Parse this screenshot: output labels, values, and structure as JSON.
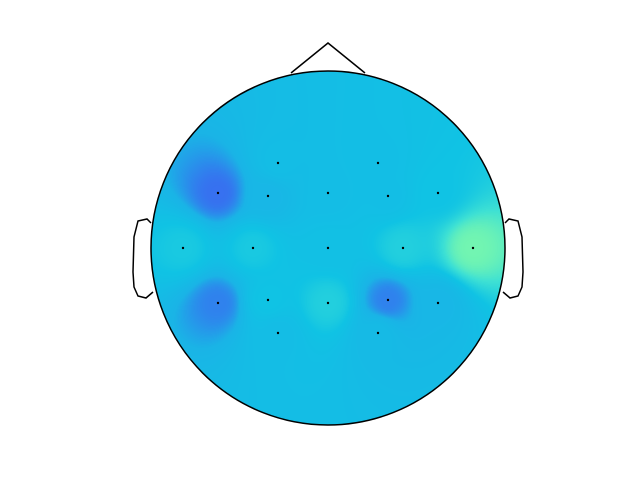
{
  "chart_data": {
    "type": "heatmap",
    "title": "",
    "xlabel": "",
    "ylabel": "",
    "colormap": [
      "#3e60f2",
      "#1ab4e6",
      "#10c3e4",
      "#3ee1d4",
      "#7ffaa9"
    ],
    "grid": false,
    "legend": "none",
    "channels": [
      {
        "x": -0.5,
        "y": 0.85,
        "value": 0.4
      },
      {
        "x": 0.5,
        "y": 0.85,
        "value": 0.42
      },
      {
        "x": -1.1,
        "y": 0.55,
        "value": 0.05
      },
      {
        "x": -0.6,
        "y": 0.52,
        "value": 0.3
      },
      {
        "x": 0.0,
        "y": 0.55,
        "value": 0.4
      },
      {
        "x": 0.6,
        "y": 0.52,
        "value": 0.42
      },
      {
        "x": 1.1,
        "y": 0.55,
        "value": 0.5
      },
      {
        "x": -1.45,
        "y": 0.0,
        "value": 0.55
      },
      {
        "x": -0.75,
        "y": 0.0,
        "value": 0.55
      },
      {
        "x": 0.0,
        "y": 0.0,
        "value": 0.45
      },
      {
        "x": 0.75,
        "y": 0.0,
        "value": 0.6
      },
      {
        "x": 1.45,
        "y": 0.0,
        "value": 0.95
      },
      {
        "x": -1.1,
        "y": -0.55,
        "value": 0.1
      },
      {
        "x": -0.6,
        "y": -0.52,
        "value": 0.5
      },
      {
        "x": 0.0,
        "y": -0.55,
        "value": 0.6
      },
      {
        "x": 0.6,
        "y": -0.52,
        "value": 0.1
      },
      {
        "x": 1.1,
        "y": -0.55,
        "value": 0.3
      },
      {
        "x": -0.5,
        "y": -0.85,
        "value": 0.4
      },
      {
        "x": 0.5,
        "y": -0.85,
        "value": 0.35
      }
    ]
  }
}
